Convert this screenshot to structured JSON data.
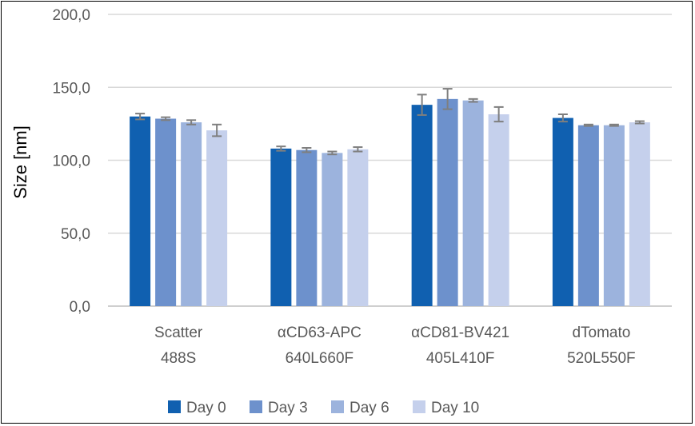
{
  "chart_data": {
    "type": "bar",
    "title": "",
    "xlabel": "",
    "ylabel": "Size [nm]",
    "ylim": [
      0,
      200
    ],
    "yticks": [
      "0,0",
      "50,0",
      "100,0",
      "150,0",
      "200,0"
    ],
    "ytick_values": [
      0,
      50,
      100,
      150,
      200
    ],
    "grid": true,
    "legend_position": "bottom",
    "categories": [
      {
        "line1": "Scatter",
        "line2": "488S"
      },
      {
        "line1": "αCD63-APC",
        "line2": "640L660F"
      },
      {
        "line1": "αCD81-BV421",
        "line2": "405L410F"
      },
      {
        "line1": "dTomato",
        "line2": "520L550F"
      }
    ],
    "series": [
      {
        "name": "Day 0",
        "color": "#1060b0",
        "values": [
          130,
          108,
          138,
          129
        ],
        "errors": [
          2,
          1.5,
          7,
          2.5
        ]
      },
      {
        "name": "Day 3",
        "color": "#6d91cc",
        "values": [
          128.5,
          107,
          142,
          124
        ],
        "errors": [
          1,
          1.5,
          7,
          0.5
        ]
      },
      {
        "name": "Day 6",
        "color": "#9cb3dd",
        "values": [
          126,
          105,
          141,
          124
        ],
        "errors": [
          1.5,
          1,
          1,
          0.5
        ]
      },
      {
        "name": "Day 10",
        "color": "#c5d0ec",
        "values": [
          120.5,
          107.5,
          131.5,
          126
        ],
        "errors": [
          4,
          1.5,
          5,
          0.8
        ]
      }
    ]
  }
}
